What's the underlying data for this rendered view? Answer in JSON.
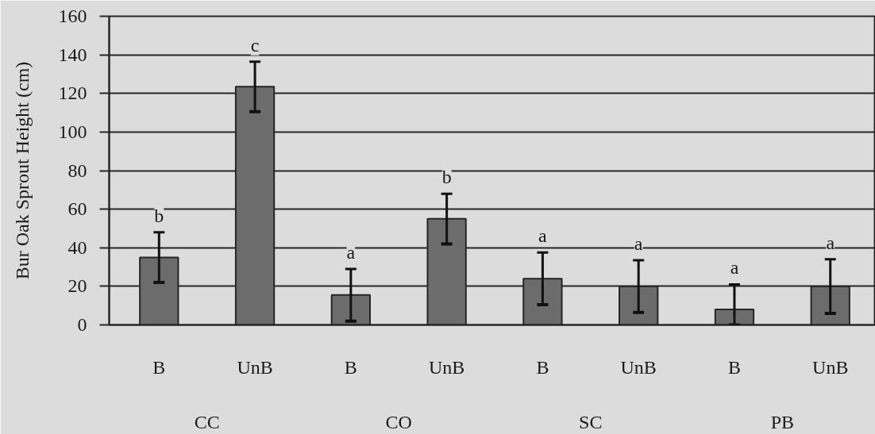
{
  "chart_data": {
    "type": "bar",
    "ylabel": "Bur Oak Sprout Height (cm)",
    "categories": [
      "B",
      "UnB",
      "B",
      "UnB",
      "B",
      "UnB",
      "B",
      "UnB"
    ],
    "values": [
      35,
      123.5,
      15.5,
      55,
      24,
      20,
      8,
      20
    ],
    "errors": [
      13,
      13,
      13.5,
      13,
      13.5,
      13.5,
      [
        0,
        21
      ],
      14
    ],
    "color": "#6c6c6c",
    "ylim": [
      0,
      160
    ],
    "yticks": [
      0,
      20,
      40,
      60,
      80,
      100,
      120,
      140,
      160
    ],
    "grid": "y",
    "annotations": [
      "b",
      "c",
      "a",
      "b",
      "a",
      "a",
      "a",
      "a",
      "CC",
      "CO",
      "SC",
      "PB"
    ]
  }
}
